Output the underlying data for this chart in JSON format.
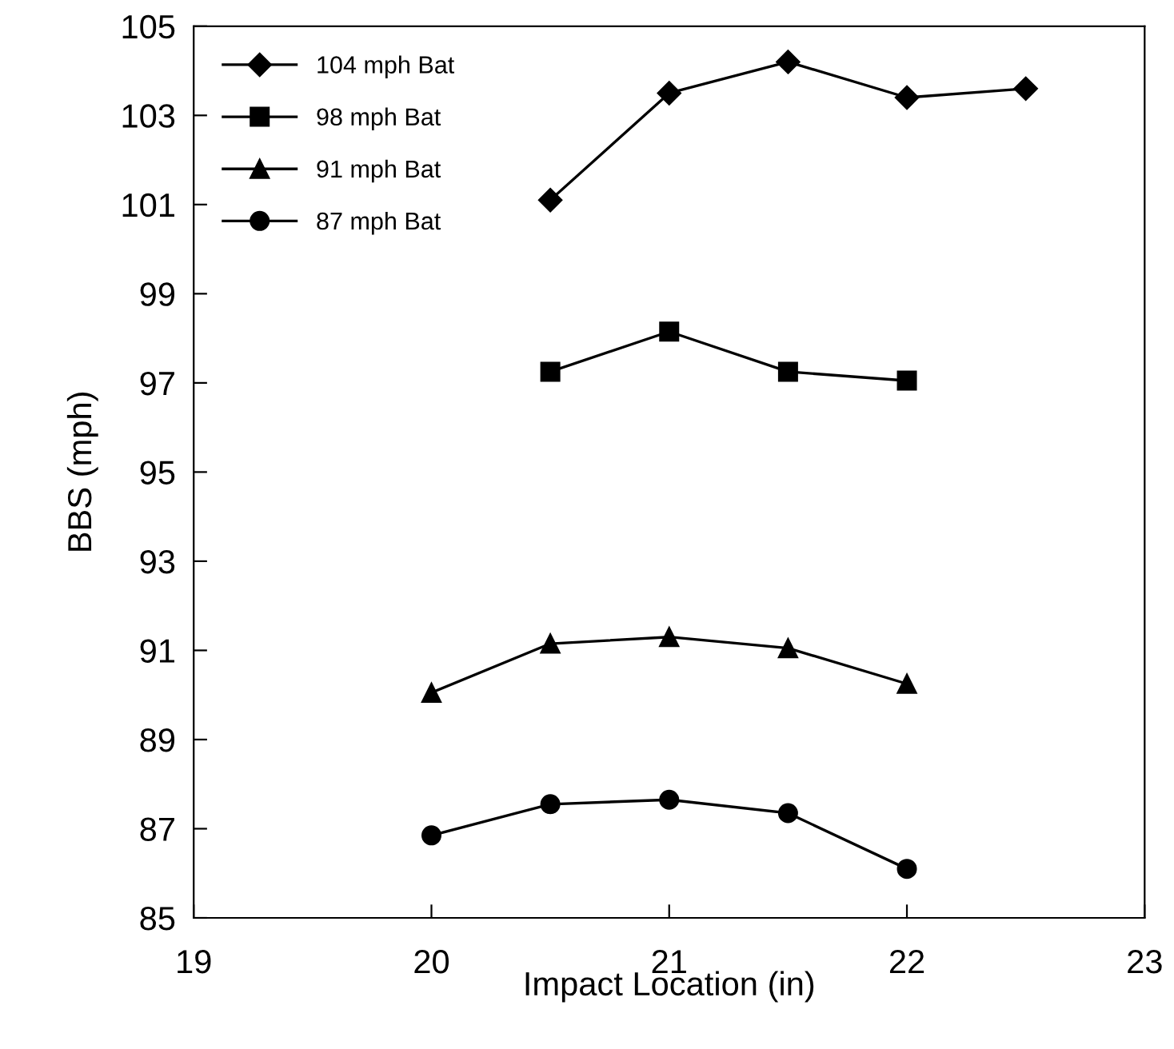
{
  "chart_data": {
    "type": "line",
    "xlabel": "Impact Location (in)",
    "ylabel": "BBS (mph)",
    "xlim": [
      19,
      23
    ],
    "xticks": [
      19,
      20,
      21,
      22,
      23
    ],
    "ylim": [
      85,
      105
    ],
    "yticks": [
      85,
      87,
      89,
      91,
      93,
      95,
      97,
      99,
      101,
      103,
      105
    ],
    "grid": false,
    "legend": "top left",
    "line_style": "solid",
    "series": [
      {
        "name": "104 mph Bat",
        "color": "#000000",
        "marker": "diamond",
        "x": [
          20.5,
          21,
          21.5,
          22,
          22.5
        ],
        "values": [
          101.1,
          103.5,
          104.2,
          103.4,
          103.6
        ]
      },
      {
        "name": "98 mph Bat",
        "color": "#000000",
        "marker": "square",
        "x": [
          20.5,
          21,
          21.5,
          22
        ],
        "values": [
          97.25,
          98.15,
          97.25,
          97.05
        ]
      },
      {
        "name": "91 mph Bat",
        "color": "#000000",
        "marker": "triangle",
        "x": [
          20,
          20.5,
          21,
          21.5,
          22
        ],
        "values": [
          90.05,
          91.15,
          91.3,
          91.05,
          90.25
        ]
      },
      {
        "name": "87 mph Bat",
        "color": "#000000",
        "marker": "circle",
        "x": [
          20,
          20.5,
          21,
          21.5,
          22
        ],
        "values": [
          86.85,
          87.55,
          87.65,
          87.35,
          86.1
        ]
      }
    ]
  }
}
